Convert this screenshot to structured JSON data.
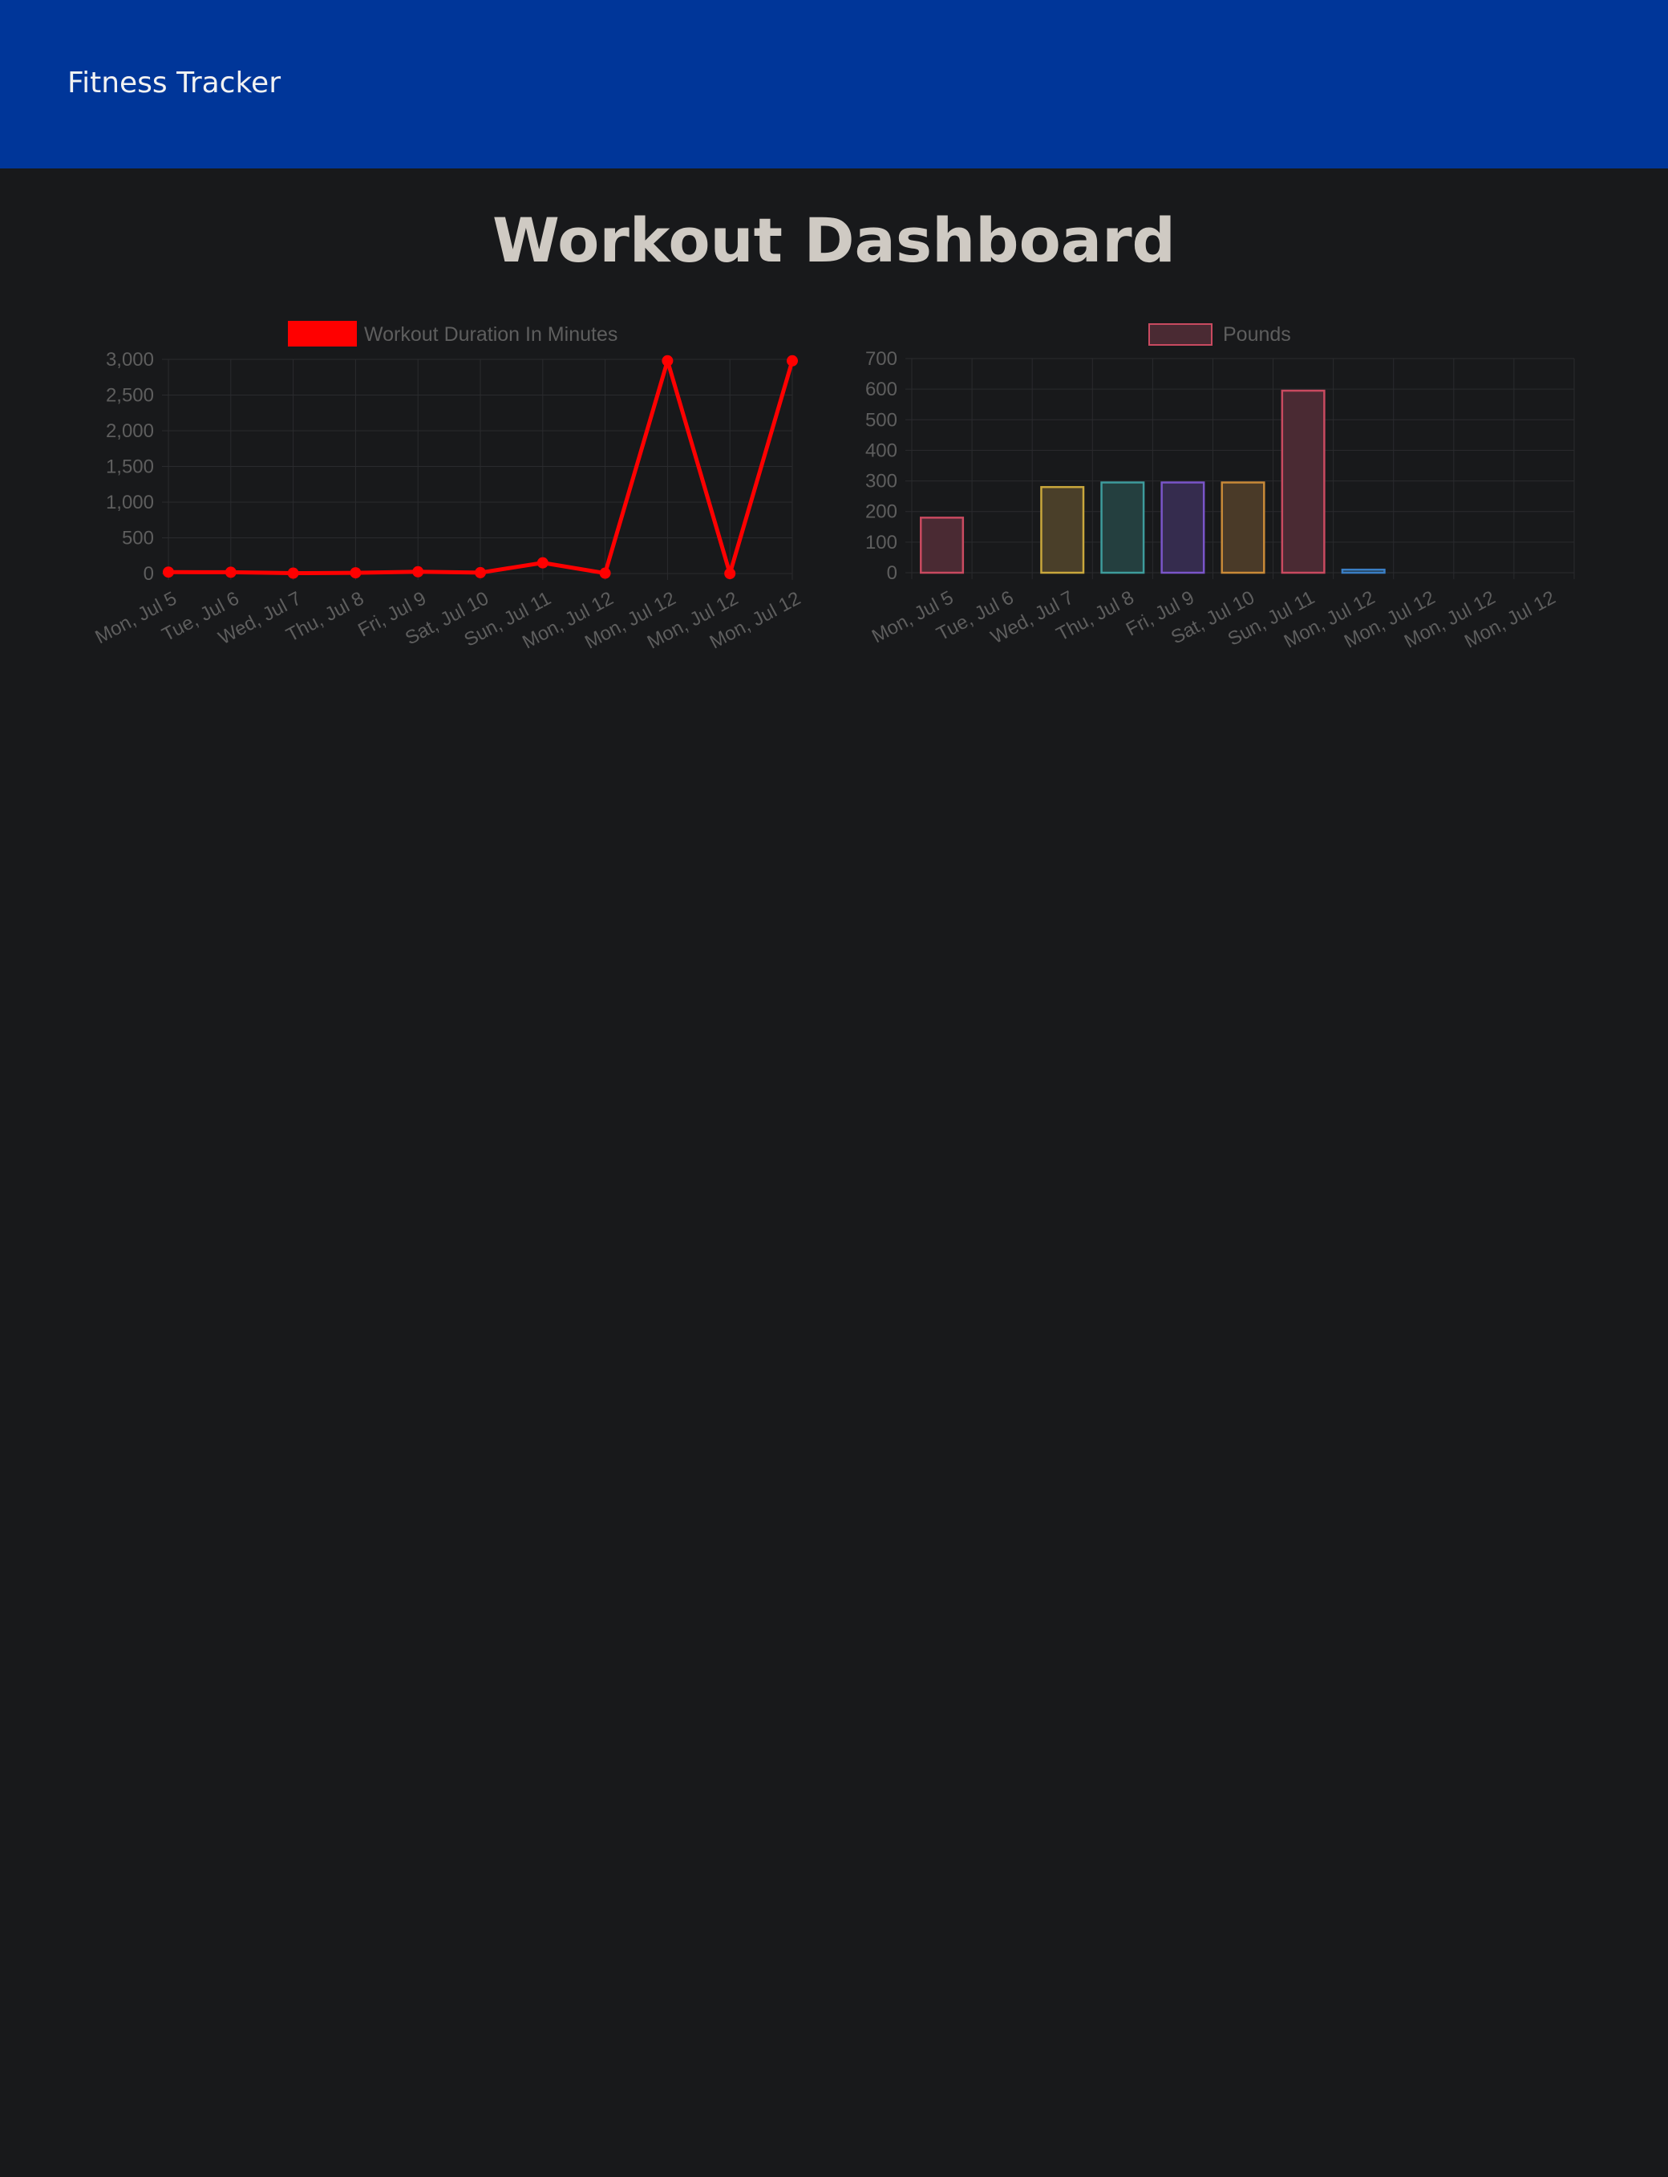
{
  "navbar": {
    "brand": "Fitness Tracker",
    "background": "#003699"
  },
  "page": {
    "title": "Workout Dashboard",
    "background": "#18191b"
  },
  "chart_data": [
    {
      "type": "line",
      "legend": {
        "label": "Workout Duration In Minutes",
        "placement": "top-center",
        "swatch_fill": "#ff0000"
      },
      "categories": [
        "Mon, Jul 5",
        "Tue, Jul 6",
        "Wed, Jul 7",
        "Thu, Jul 8",
        "Fri, Jul 9",
        "Sat, Jul 10",
        "Sun, Jul 11",
        "Mon, Jul 12",
        "Mon, Jul 12",
        "Mon, Jul 12",
        "Mon, Jul 12"
      ],
      "series": [
        {
          "name": "Workout Duration In Minutes",
          "values": [
            20,
            18,
            5,
            10,
            25,
            12,
            150,
            5,
            2980,
            0,
            2980
          ],
          "color": "#ff0000"
        }
      ],
      "yticks": [
        "0",
        "500",
        "1,000",
        "1,500",
        "2,000",
        "2,500",
        "3,000"
      ],
      "ylim": [
        0,
        3000
      ],
      "grid": true
    },
    {
      "type": "bar",
      "legend": {
        "label": "Pounds",
        "placement": "top-center",
        "swatch_fill": "#4a2a33",
        "swatch_border": "#c94a60"
      },
      "categories": [
        "Mon, Jul 5",
        "Tue, Jul 6",
        "Wed, Jul 7",
        "Thu, Jul 8",
        "Fri, Jul 9",
        "Sat, Jul 10",
        "Sun, Jul 11",
        "Mon, Jul 12",
        "Mon, Jul 12",
        "Mon, Jul 12",
        "Mon, Jul 12"
      ],
      "series": [
        {
          "name": "Pounds",
          "values": [
            180,
            0,
            280,
            295,
            295,
            295,
            595,
            10,
            0,
            0,
            0
          ],
          "fills": [
            "#4a2a33",
            "#4a2a33",
            "#4a3f29",
            "#243f3f",
            "#352c4e",
            "#4a3a28",
            "#4a2a33",
            "#22384a",
            "#4a2a33",
            "#4a3f29",
            "#243f3f"
          ],
          "borders": [
            "#c94a60",
            "#c94a60",
            "#c9a73c",
            "#3e9c9c",
            "#7a55c9",
            "#c98a38",
            "#c94a60",
            "#3a7ec4",
            "#c94a60",
            "#c9a73c",
            "#3e9c9c"
          ]
        }
      ],
      "yticks": [
        "0",
        "100",
        "200",
        "300",
        "400",
        "500",
        "600",
        "700"
      ],
      "ylim": [
        0,
        700
      ],
      "grid": true
    }
  ]
}
